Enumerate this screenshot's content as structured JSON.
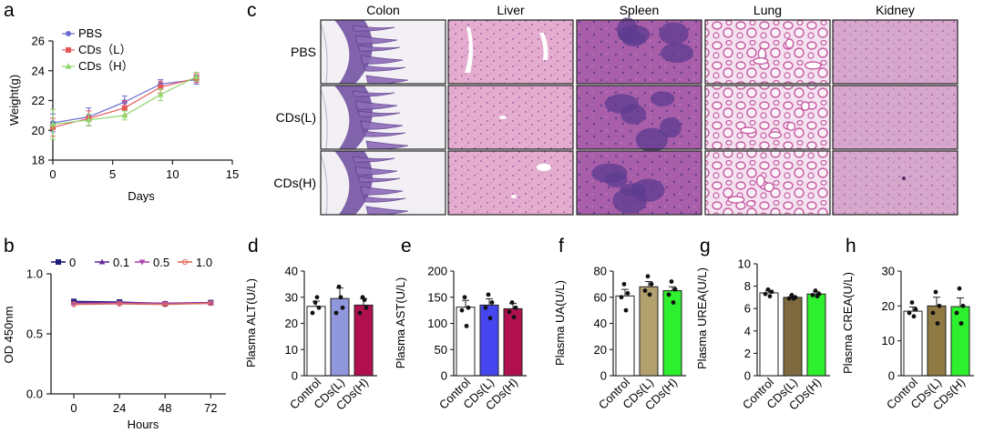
{
  "colors": {
    "pbs": "#6a6ad4",
    "cds_l": "#e8585a",
    "cds_h": "#8fd66b",
    "od_0": "#1c1c78",
    "od_01": "#6a2c9c",
    "od_05": "#b046b0",
    "od_10": "#e06a5a",
    "bar_fill": [
      "#ffffff",
      "#9197dc",
      "#b0104e",
      "#4646f0",
      "#b2a06e",
      "#2ef02e",
      "#7e6a3e",
      "#8e7a42"
    ],
    "tissue_colon_fill": "#d8d0e4",
    "tissue_colon_crypt": "#6c4a9c",
    "tissue_liver": "#e2a8cc",
    "tissue_spleen": "#a25aa6",
    "tissue_spleen_dark": "#5c3c90",
    "tissue_lung": "#f0d8ec",
    "tissue_lung_stroke": "#c15a9e",
    "tissue_kidney": "#d3a1c9"
  },
  "panels": {
    "a": {
      "letter": "a",
      "chart_data": {
        "type": "line",
        "xlabel": "Days",
        "ylabel": "Weight(g)",
        "xlim": [
          0,
          15
        ],
        "ylim": [
          18,
          26
        ],
        "x_ticks": [
          "0",
          "5",
          "10",
          "15"
        ],
        "y_ticks": [
          "18",
          "20",
          "22",
          "24",
          "26"
        ],
        "legend_placement": "top-left",
        "series": [
          {
            "name": "PBS",
            "x": [
              0,
              3,
              6,
              9,
              12
            ],
            "y": [
              20.5,
              20.9,
              21.9,
              23.1,
              23.4
            ],
            "err": [
              0.6,
              0.6,
              0.4,
              0.3,
              0.3
            ],
            "marker": "circle"
          },
          {
            "name": "CDs（L）",
            "x": [
              0,
              3,
              6,
              9,
              12
            ],
            "y": [
              20.2,
              20.8,
              21.5,
              22.9,
              23.5
            ],
            "err": [
              0.6,
              0.5,
              0.5,
              0.4,
              0.3
            ],
            "marker": "square"
          },
          {
            "name": "CDs（H）",
            "x": [
              0,
              3,
              6,
              9,
              12
            ],
            "y": [
              20.4,
              20.7,
              21.0,
              22.4,
              23.6
            ],
            "err": [
              1.0,
              0.4,
              0.3,
              0.4,
              0.3
            ],
            "marker": "triangle"
          }
        ]
      }
    },
    "b": {
      "letter": "b",
      "chart_data": {
        "type": "line",
        "xlabel": "Hours",
        "ylabel": "OD 450nm",
        "xlim": [
          -12,
          80
        ],
        "ylim": [
          0,
          1.0
        ],
        "x_ticks": [
          "0",
          "24",
          "48",
          "72"
        ],
        "y_ticks": [
          "0.0",
          "0.5",
          "1.0"
        ],
        "legend_placement": "top",
        "series": [
          {
            "name": "0",
            "x": [
              0,
              24,
              48,
              72
            ],
            "y": [
              0.77,
              0.765,
              0.75,
              0.76
            ]
          },
          {
            "name": "0.1",
            "x": [
              0,
              24,
              48,
              72
            ],
            "y": [
              0.76,
              0.76,
              0.755,
              0.76
            ]
          },
          {
            "name": "0.5",
            "x": [
              0,
              24,
              48,
              72
            ],
            "y": [
              0.75,
              0.755,
              0.75,
              0.755
            ]
          },
          {
            "name": "1.0",
            "x": [
              0,
              24,
              48,
              72
            ],
            "y": [
              0.745,
              0.75,
              0.745,
              0.755
            ]
          }
        ]
      }
    },
    "c": {
      "letter": "c",
      "columns": [
        "Colon",
        "Liver",
        "Spleen",
        "Lung",
        "Kidney"
      ],
      "rows": [
        "PBS",
        "CDs(L)",
        "CDs(H)"
      ]
    },
    "bars": [
      {
        "letter": "d",
        "chart_data": {
          "type": "bar",
          "ylabel": "Plasma ALT(U/L)",
          "ylim": [
            0,
            40
          ],
          "y_ticks": [
            "0",
            "10",
            "20",
            "30",
            "40"
          ],
          "categories": [
            "Control",
            "CDs(L)",
            "CDs(H)"
          ],
          "values": [
            26.5,
            29.5,
            27.0
          ],
          "err": [
            2.0,
            4.0,
            2.5
          ],
          "points": [
            [
              28,
              26,
              24,
              30
            ],
            [
              34,
              26,
              24,
              30
            ],
            [
              30,
              26,
              24,
              29
            ]
          ]
        }
      },
      {
        "letter": "e",
        "chart_data": {
          "type": "bar",
          "ylabel": "Plasma AST(U/L)",
          "ylim": [
            0,
            200
          ],
          "y_ticks": [
            "0",
            "50",
            "100",
            "150",
            "200"
          ],
          "categories": [
            "Control",
            "CDs(L)",
            "CDs(H)"
          ],
          "values": [
            131,
            135,
            128
          ],
          "err": [
            13,
            12,
            10
          ],
          "points": [
            [
              150,
              130,
              125,
              95
            ],
            [
              155,
              140,
              130,
              110
            ],
            [
              140,
              130,
              122,
              112
            ]
          ]
        }
      },
      {
        "letter": "f",
        "chart_data": {
          "type": "bar",
          "ylabel": "Plasma UA(U/L)",
          "ylim": [
            0,
            80
          ],
          "y_ticks": [
            "0",
            "20",
            "40",
            "60",
            "80"
          ],
          "categories": [
            "Control",
            "CDs(L)",
            "CDs(H)"
          ],
          "values": [
            61,
            68,
            65
          ],
          "err": [
            5,
            4,
            3
          ],
          "points": [
            [
              70,
              63,
              60,
              50
            ],
            [
              76,
              70,
              65,
              62
            ],
            [
              72,
              66,
              62,
              56
            ]
          ]
        }
      },
      {
        "letter": "g",
        "chart_data": {
          "type": "bar",
          "ylabel": "Plasma UREA(U/L)",
          "ylim": [
            0,
            10
          ],
          "y_ticks": [
            "0",
            "2",
            "4",
            "6",
            "8",
            "10"
          ],
          "categories": [
            "Control",
            "CDs(L)",
            "CDs(H)"
          ],
          "values": [
            7.4,
            7.0,
            7.3
          ],
          "err": [
            0.2,
            0.15,
            0.2
          ],
          "points": [
            [
              7.7,
              7.5,
              7.3,
              7.1
            ],
            [
              7.2,
              7.0,
              6.9,
              6.9
            ],
            [
              7.6,
              7.3,
              7.2,
              7.1
            ]
          ]
        }
      },
      {
        "letter": "h",
        "chart_data": {
          "type": "bar",
          "ylabel": "Plasma CREA(U/L)",
          "ylim": [
            0,
            30
          ],
          "y_ticks": [
            "0",
            "10",
            "20",
            "30"
          ],
          "categories": [
            "Control",
            "CDs(L)",
            "CDs(H)"
          ],
          "values": [
            18.5,
            20.0,
            19.8
          ],
          "err": [
            1.2,
            2.5,
            2.5
          ],
          "points": [
            [
              21,
              19,
              18,
              17
            ],
            [
              24,
              20,
              18,
              15
            ],
            [
              25,
              20,
              18,
              15
            ]
          ]
        }
      }
    ]
  }
}
